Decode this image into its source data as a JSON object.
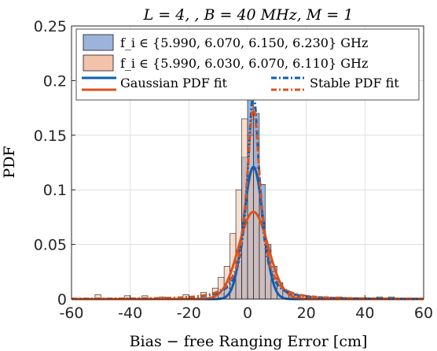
{
  "chart_data": {
    "type": "bar",
    "title": "L = 4,   , B = 40  MHz, M = 1",
    "xlabel": "Bias − free  Ranging  Error  [cm]",
    "ylabel": "PDF",
    "xlim": [
      -60,
      60
    ],
    "ylim": [
      0,
      0.25
    ],
    "x_ticks": [
      "-60",
      "-40",
      "-20",
      "0",
      "20",
      "40",
      "60"
    ],
    "y_ticks": [
      "0",
      "0.05",
      "0.1",
      "0.15",
      "0.2",
      "0.25"
    ],
    "grid": true,
    "legend_position": "top",
    "colors": {
      "blue_fill": "#9cb4db",
      "orange_fill": "#f2c2aa",
      "blue_line": "#0b5fb5",
      "orange_line": "#d9531e",
      "overlap_fill": "#a59aa6"
    },
    "series": [
      {
        "name": "f_i ∈ {5.990,  6.070,  6.150,  6.230}  GHz",
        "kind": "histogram",
        "bin_width": 2,
        "bin_centers": [
          -9,
          -7,
          -5,
          -3,
          -1,
          1,
          3,
          5,
          7,
          9,
          11,
          13,
          15,
          17
        ],
        "values": [
          0.005,
          0.01,
          0.02,
          0.035,
          0.13,
          0.185,
          0.17,
          0.105,
          0.05,
          0.03,
          0.015,
          0.007,
          0.004,
          0.002
        ]
      },
      {
        "name": "f_i ∈ {5.990,  6.030,  6.070,  6.110}  GHz",
        "kind": "histogram",
        "bin_width": 2,
        "bin_centers": [
          -51,
          -41,
          -35,
          -29,
          -21,
          -15,
          -11,
          -9,
          -7,
          -5,
          -3,
          -1,
          1,
          3,
          5,
          7,
          9,
          11,
          13,
          15,
          19,
          31,
          45,
          49
        ],
        "values": [
          0.004,
          0.003,
          0.003,
          0.002,
          0.004,
          0.006,
          0.01,
          0.02,
          0.03,
          0.06,
          0.1,
          0.165,
          0.15,
          0.12,
          0.07,
          0.045,
          0.025,
          0.015,
          0.008,
          0.005,
          0.003,
          0.002,
          0.002,
          0.002
        ]
      },
      {
        "name": "Gaussian PDF fit",
        "kind": "gaussian",
        "components": [
          {
            "mu": 2,
            "sigma": 3.3,
            "color_key": "blue_line"
          },
          {
            "mu": 2,
            "sigma": 5.0,
            "color_key": "orange_line"
          }
        ]
      },
      {
        "name": "Stable PDF fit",
        "kind": "stable",
        "components": [
          {
            "peak": 0.187,
            "mu": 2,
            "scale": 2.6,
            "color_key": "blue_line"
          },
          {
            "peak": 0.175,
            "mu": 2,
            "scale": 2.9,
            "color_key": "orange_line"
          }
        ]
      }
    ]
  }
}
